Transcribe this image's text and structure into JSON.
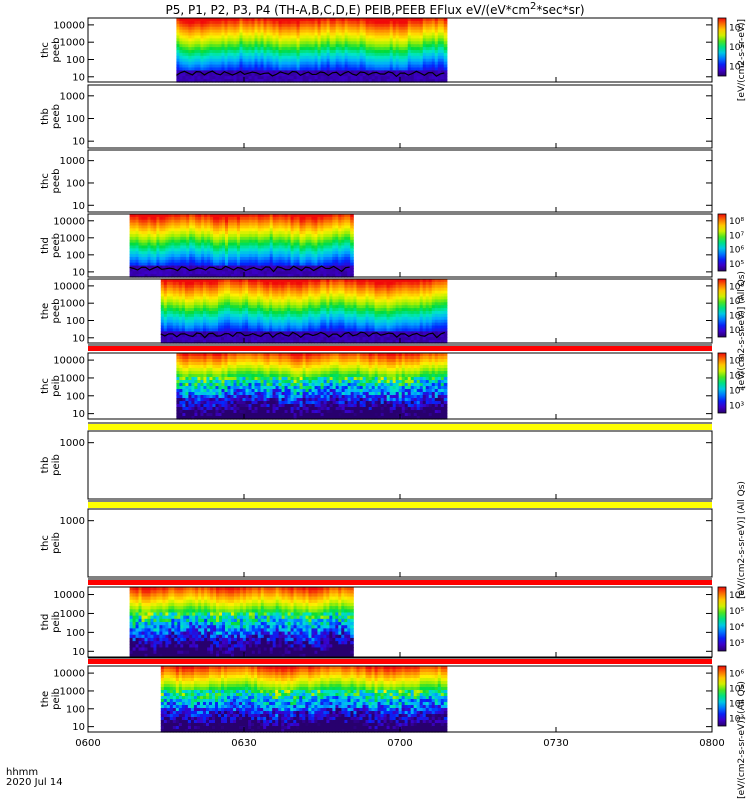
{
  "title": "P5, P1, P2, P3, P4 (TH-A,B,C,D,E) PEIB,PEEB EFlux eV/(eV*cm^2*sec*sr)",
  "time_label": "hhmm",
  "date_label": "2020 Jul 14",
  "x_ticks": [
    "0600",
    "0630",
    "0700",
    "0730",
    "0800"
  ],
  "colors": {
    "axis": "#000000",
    "fill_line": "#000000",
    "red_band": "#ff0000",
    "yellow_band": "#ffff00"
  },
  "chart_data": {
    "type": "heatmap",
    "title": "P5, P1, P2, P3, P4 (TH-A,B,C,D,E) PEIB,PEEB EFlux eV/(eV*cm^2*sec*sr)",
    "xlabel": "hhmm",
    "x_range_min": [
      0,
      120
    ],
    "x_tick_values_min": [
      0,
      30,
      60,
      90,
      120
    ],
    "panels": [
      {
        "id": "thc-peeb-1",
        "label": "thc\npeeb",
        "ylabel_top": "thc",
        "ylabel_bottom": "peeb",
        "y_ticks": [
          "10",
          "100",
          "1000",
          "10000"
        ],
        "y_range": [
          5,
          25000
        ],
        "data_start_min": 17,
        "data_end_min": 69,
        "kind": "electron",
        "colorbar": {
          "ticks": [
            "10⁵",
            "10⁶",
            "10⁷"
          ],
          "label": "eV/(cm2-s-sr-eV)"
        }
      },
      {
        "id": "thb-peeb",
        "label": "thb\npeeb",
        "ylabel_top": "thb",
        "ylabel_bottom": "peeb",
        "y_ticks": [
          "10",
          "100",
          "1000"
        ],
        "y_range": [
          5,
          3000
        ],
        "data_start_min": null,
        "data_end_min": null,
        "kind": "empty",
        "colorbar": null
      },
      {
        "id": "thc-peeb-2",
        "label": "thc\npeeb",
        "ylabel_top": "thc",
        "ylabel_bottom": "peeb",
        "y_ticks": [
          "10",
          "100",
          "1000"
        ],
        "y_range": [
          5,
          3000
        ],
        "data_start_min": null,
        "data_end_min": null,
        "kind": "empty",
        "colorbar": null
      },
      {
        "id": "thd-peeb",
        "label": "thd\npeeb",
        "ylabel_top": "thd",
        "ylabel_bottom": "peeb",
        "y_ticks": [
          "10",
          "100",
          "1000",
          "10000"
        ],
        "y_range": [
          5,
          25000
        ],
        "data_start_min": 8,
        "data_end_min": 51,
        "kind": "electron",
        "colorbar": {
          "ticks": [
            "10⁵",
            "10⁶",
            "10⁷",
            "10⁸"
          ],
          "label": "eV/(cm2-s-sr-eV)"
        }
      },
      {
        "id": "the-peeb",
        "label": "the\npeeb",
        "ylabel_top": "the",
        "ylabel_bottom": "peeb",
        "y_ticks": [
          "10",
          "100",
          "1000",
          "10000"
        ],
        "y_range": [
          5,
          25000
        ],
        "data_start_min": 14,
        "data_end_min": 69,
        "kind": "electron",
        "colorbar": {
          "ticks": [
            "10⁵",
            "10⁶",
            "10⁷",
            "10⁸"
          ],
          "label": "eV/(cm2-s-sr-eV)"
        }
      },
      {
        "id": "thc-peib",
        "label": "thc\npeib",
        "ylabel_top": "thc",
        "ylabel_bottom": "peib",
        "y_ticks": [
          "10",
          "100",
          "1000",
          "10000"
        ],
        "y_range": [
          5,
          25000
        ],
        "data_start_min": 17,
        "data_end_min": 69,
        "kind": "ion",
        "band": "red",
        "colorbar": {
          "ticks": [
            "10³",
            "10⁴",
            "10⁵",
            "10⁶"
          ],
          "label": "eV/(cm2-s-sr-eV)"
        }
      },
      {
        "id": "thb-peib",
        "label": "thb\npeib",
        "ylabel_top": "thb",
        "ylabel_bottom": "peib",
        "y_ticks": [
          "1000"
        ],
        "y_range": [
          5,
          3000
        ],
        "data_start_min": null,
        "data_end_min": null,
        "kind": "empty",
        "band": "yellow",
        "colorbar": null
      },
      {
        "id": "thc-peib-2",
        "label": "thc\npeib",
        "ylabel_top": "thc",
        "ylabel_bottom": "peib",
        "y_ticks": [
          "1000"
        ],
        "y_range": [
          5,
          3000
        ],
        "data_start_min": null,
        "data_end_min": null,
        "kind": "empty",
        "band": "yellow",
        "colorbar": null
      },
      {
        "id": "thd-peib",
        "label": "thd\npeib",
        "ylabel_top": "thd",
        "ylabel_bottom": "peib",
        "y_ticks": [
          "10",
          "100",
          "1000",
          "10000"
        ],
        "y_range": [
          5,
          25000
        ],
        "data_start_min": 8,
        "data_end_min": 51,
        "kind": "ion",
        "band": "red",
        "colorbar": {
          "ticks": [
            "10³",
            "10⁴",
            "10⁵",
            "10⁶"
          ],
          "label": "eV/(cm2-s-sr-eV)"
        }
      },
      {
        "id": "the-peib",
        "label": "the\npeib",
        "ylabel_top": "the",
        "ylabel_bottom": "peib",
        "y_ticks": [
          "10",
          "100",
          "1000",
          "10000"
        ],
        "y_range": [
          5,
          25000
        ],
        "data_start_min": 14,
        "data_end_min": 69,
        "kind": "ion",
        "band": "red",
        "colorbar": {
          "ticks": [
            "10³",
            "10⁴",
            "10⁵",
            "10⁶"
          ],
          "label": "eV/(cm2-s-sr-eV)"
        }
      }
    ],
    "colorbar_side_labels": [
      "[eV/(cm2-s-sr-eV)]",
      "[eV/(cm2-s-sr-eV)] (All Qs)",
      "[eV/(cm2-s-sr-eV)] (All Qs)",
      "[eV/(cm2-s-sr-eV)] (All Qs)"
    ]
  }
}
